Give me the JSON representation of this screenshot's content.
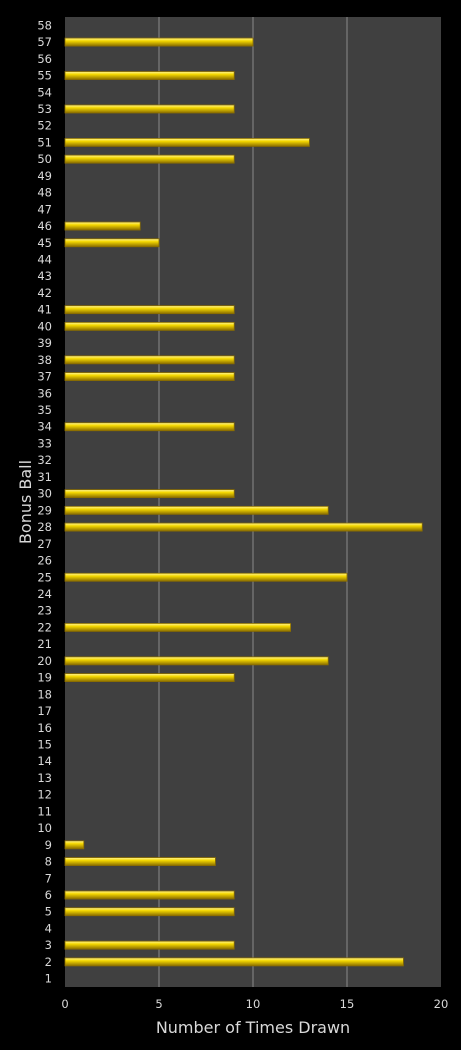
{
  "chart_data": {
    "type": "bar",
    "orientation": "horizontal",
    "xlabel": "Number of Times Drawn",
    "ylabel": "Bonus Ball",
    "xlim": [
      0,
      20
    ],
    "x_ticks": [
      0,
      5,
      10,
      15,
      20
    ],
    "grid": true,
    "colors": {
      "background": "#000000",
      "plot_area": "#404040",
      "gridline": "#8a8a8a",
      "bar_fill": "#f5d800",
      "bar_highlight": "#fff59a",
      "bar_edge": "#8a6d00",
      "text": "#d9d9d9"
    },
    "categories": [
      "1",
      "2",
      "3",
      "4",
      "5",
      "6",
      "7",
      "8",
      "9",
      "10",
      "11",
      "12",
      "13",
      "14",
      "15",
      "16",
      "17",
      "18",
      "19",
      "20",
      "21",
      "22",
      "23",
      "24",
      "25",
      "26",
      "27",
      "28",
      "29",
      "30",
      "31",
      "32",
      "33",
      "34",
      "35",
      "36",
      "37",
      "38",
      "39",
      "40",
      "41",
      "42",
      "43",
      "44",
      "45",
      "46",
      "47",
      "48",
      "49",
      "50",
      "51",
      "52",
      "53",
      "54",
      "55",
      "56",
      "57",
      "58"
    ],
    "values": [
      0,
      18,
      9,
      0,
      9,
      9,
      0,
      8,
      1,
      0,
      0,
      0,
      0,
      0,
      0,
      0,
      0,
      0,
      9,
      14,
      0,
      12,
      0,
      0,
      15,
      0,
      0,
      19,
      14,
      9,
      0,
      0,
      0,
      9,
      0,
      0,
      9,
      9,
      0,
      9,
      9,
      0,
      0,
      0,
      5,
      4,
      0,
      0,
      0,
      9,
      13,
      0,
      9,
      0,
      9,
      0,
      10,
      0
    ]
  }
}
